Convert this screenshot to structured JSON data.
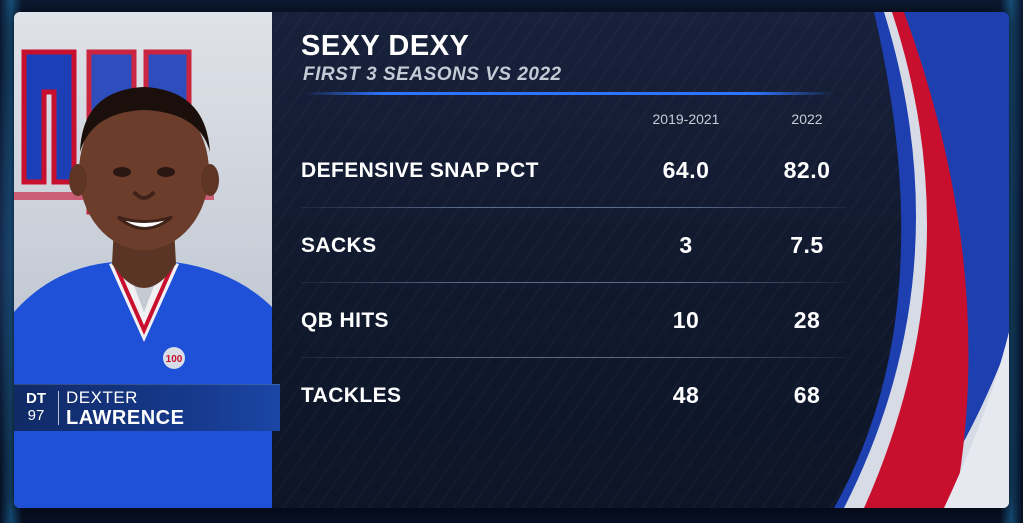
{
  "graphic": {
    "title": "SEXY DEXY",
    "subtitle": "FIRST 3 SEASONS VS 2022"
  },
  "player": {
    "position": "DT",
    "number": "97",
    "first_name": "DEXTER",
    "last_name": "LAWRENCE",
    "team_logo_letters": "ny",
    "jersey_patch": "100"
  },
  "columns": [
    "2019-2021",
    "2022"
  ],
  "rows": [
    {
      "label": "DEFENSIVE SNAP PCT",
      "values": [
        "64.0",
        "82.0"
      ]
    },
    {
      "label": "SACKS",
      "values": [
        "3",
        "7.5"
      ]
    },
    {
      "label": "QB HITS",
      "values": [
        "10",
        "28"
      ]
    },
    {
      "label": "TACKLES",
      "values": [
        "48",
        "68"
      ]
    }
  ],
  "colors": {
    "accent_blue": "#2f74ff",
    "team_blue": "#1c4fd6",
    "team_red": "#c8102e",
    "panel_bg": "#141d34",
    "text": "#ffffff"
  }
}
